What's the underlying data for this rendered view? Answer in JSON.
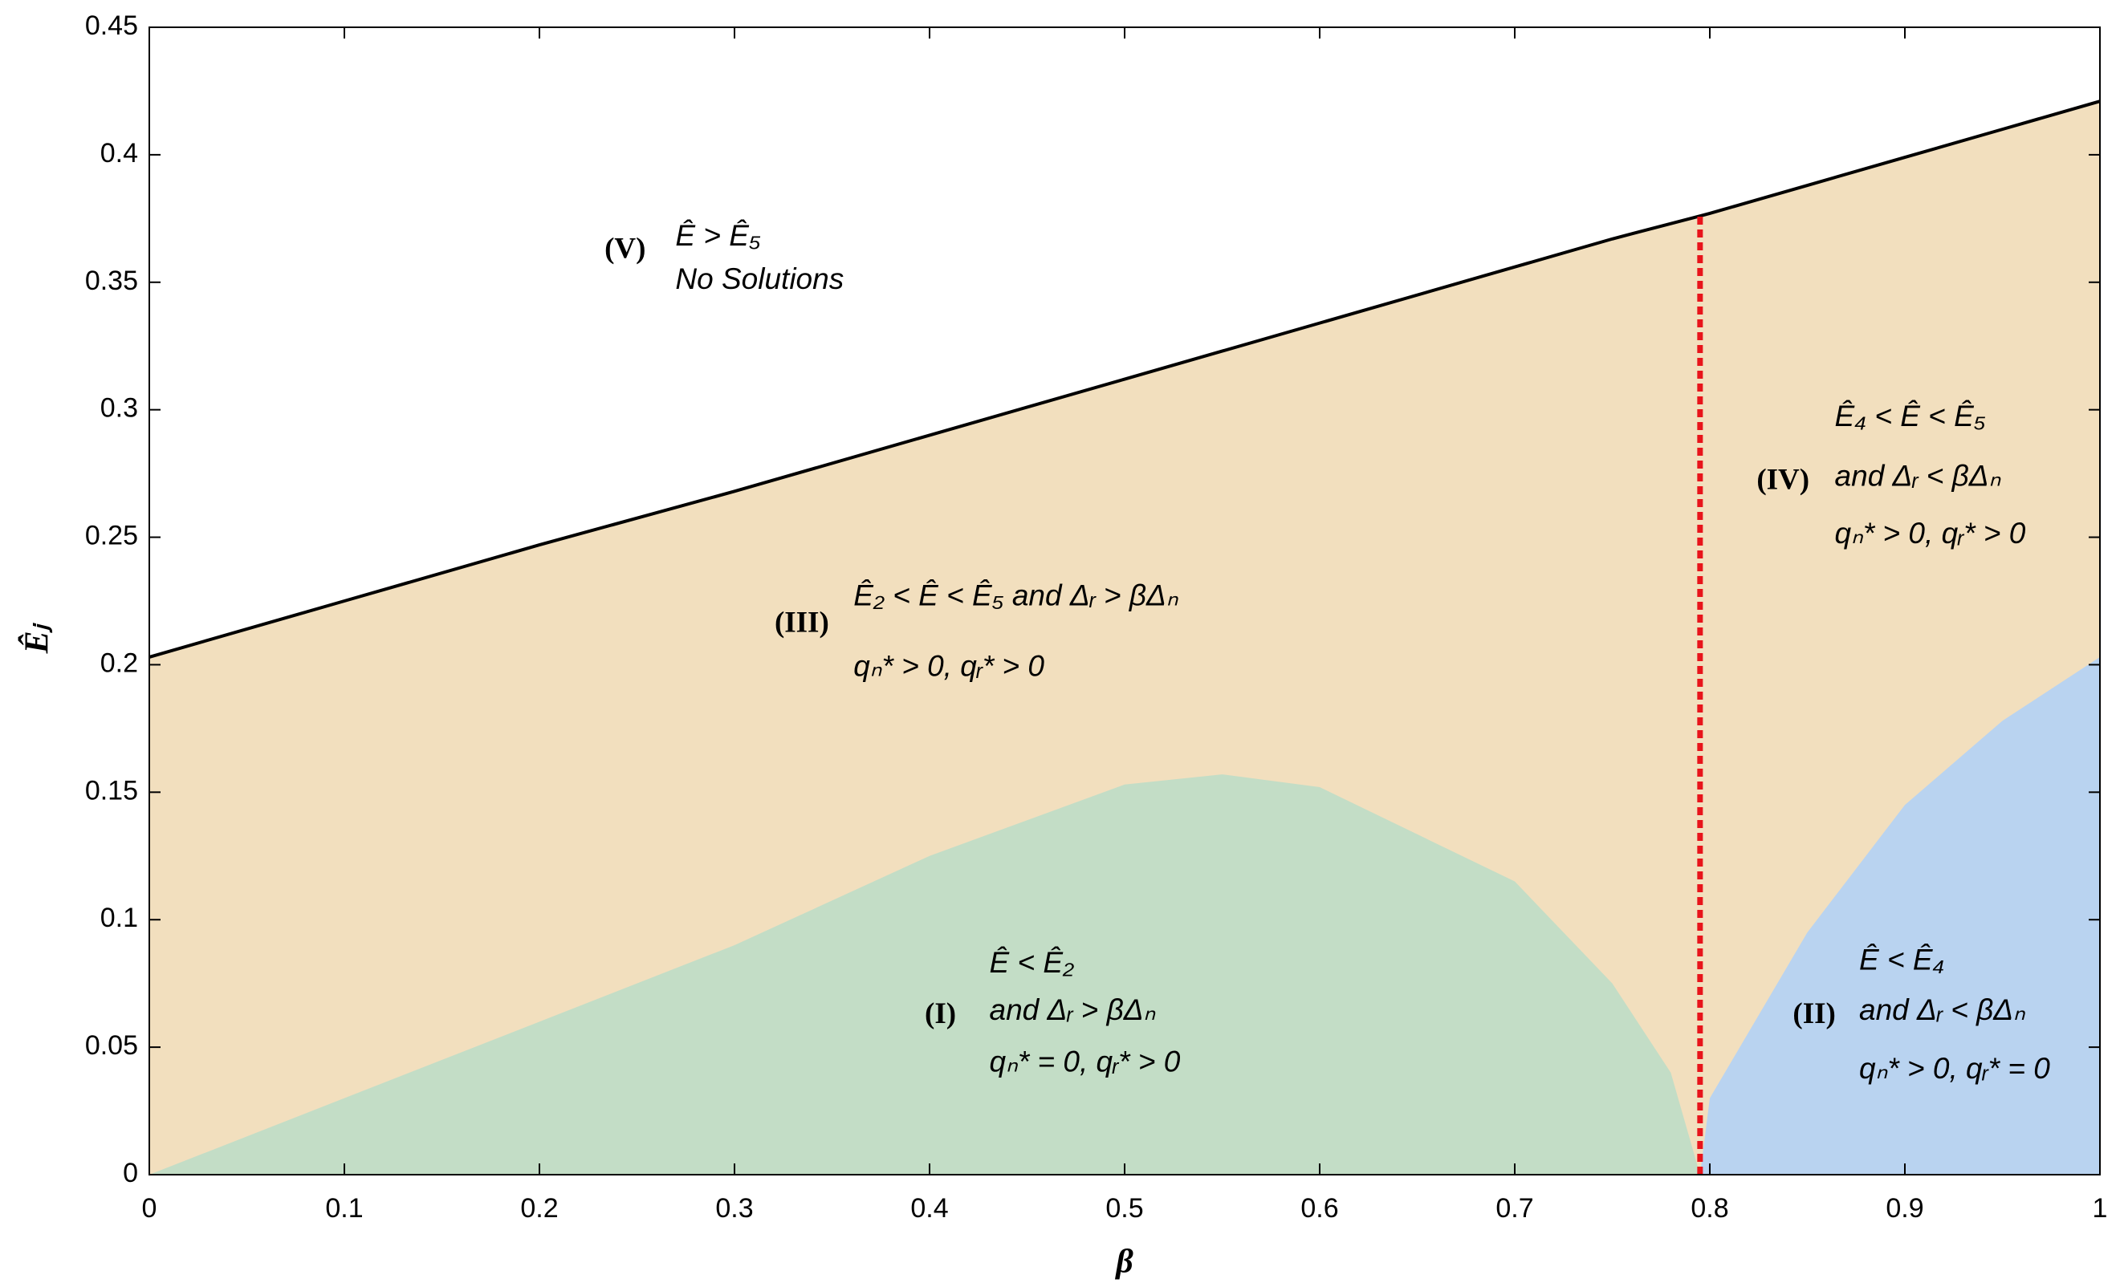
{
  "chart_data": {
    "type": "area",
    "x": [
      0,
      0.1,
      0.2,
      0.3,
      0.4,
      0.5,
      0.55,
      0.6,
      0.7,
      0.75,
      0.78,
      0.795,
      0.8,
      0.85,
      0.9,
      0.95,
      1
    ],
    "series": [
      {
        "color": "#000000",
        "fill": "#f2dfbe",
        "values": [
          0.203,
          0.225,
          0.247,
          0.268,
          0.29,
          0.312,
          0.323,
          0.334,
          0.356,
          0.367,
          0.373,
          0.376,
          0.377,
          0.388,
          0.399,
          0.41,
          0.421
        ]
      },
      {
        "fill": "#c3ddc6",
        "values": [
          0,
          0.03,
          0.06,
          0.09,
          0.125,
          0.153,
          0.157,
          0.152,
          0.115,
          0.075,
          0.04,
          0,
          null,
          null,
          null,
          null,
          null
        ]
      },
      {
        "fill": "#b9d3f0",
        "values": [
          null,
          null,
          null,
          null,
          null,
          null,
          null,
          null,
          null,
          null,
          null,
          0,
          0.03,
          0.095,
          0.145,
          0.178,
          0.203
        ]
      }
    ],
    "boundary_x": 0.795,
    "boundary_color": "#e8141b",
    "xlabel": "β",
    "ylabel": "Êⱼ",
    "xlim": [
      0,
      1
    ],
    "xticks": [
      0,
      0.1,
      0.2,
      0.3,
      0.4,
      0.5,
      0.6,
      0.7,
      0.8,
      0.9,
      1
    ],
    "ylim": [
      0,
      0.45
    ],
    "yticks": [
      0,
      0.05,
      0.1,
      0.15,
      0.2,
      0.25,
      0.3,
      0.35,
      0.4,
      0.45
    ],
    "annotations": [
      {
        "label": "(V)",
        "lines": [
          "Ê > Ê₅",
          "No Solutions"
        ]
      },
      {
        "label": "(III)",
        "lines": [
          "Ê₂ < Ê < Ê₅  and Δᵣ > βΔₙ",
          "qₙ* > 0, qᵣ* > 0"
        ]
      },
      {
        "label": "(IV)",
        "lines": [
          "Ê₄ < Ê < Ê₅",
          "and Δᵣ < βΔₙ",
          "qₙ* > 0, qᵣ* > 0"
        ]
      },
      {
        "label": "(I)",
        "lines": [
          "Ê < Ê₂",
          "and Δᵣ > βΔₙ",
          "qₙ* = 0, qᵣ* > 0"
        ]
      },
      {
        "label": "(II)",
        "lines": [
          "Ê < Ê₄",
          "and Δᵣ < βΔₙ",
          "qₙ* > 0, qᵣ* = 0"
        ]
      }
    ]
  }
}
